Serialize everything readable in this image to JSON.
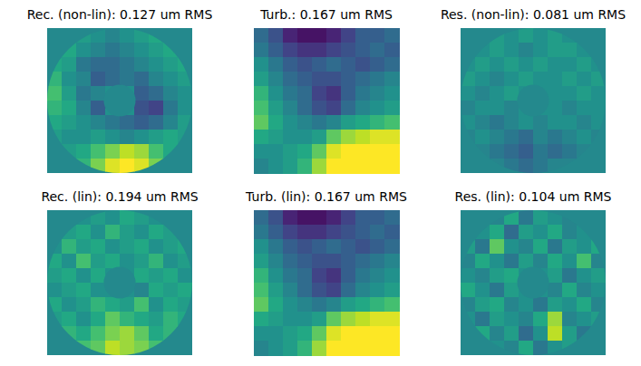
{
  "chart_data": [
    {
      "type": "heatmap",
      "title": "Rec. (non-lin): 0.127 um RMS",
      "zlim": [
        0,
        1
      ],
      "cells": [
        [
          null,
          null,
          0.55,
          0.5,
          0.45,
          0.5,
          0.55,
          0.6,
          null,
          null
        ],
        [
          null,
          0.6,
          0.5,
          0.45,
          0.4,
          0.45,
          0.5,
          0.55,
          0.6,
          null
        ],
        [
          0.6,
          0.55,
          0.4,
          0.35,
          0.35,
          0.4,
          0.45,
          0.5,
          0.55,
          0.6
        ],
        [
          0.65,
          0.5,
          0.45,
          0.3,
          0.35,
          0.4,
          0.35,
          0.45,
          0.5,
          0.55
        ],
        [
          0.7,
          0.55,
          0.4,
          0.45,
          0.5,
          0.5,
          0.3,
          0.35,
          0.45,
          0.5
        ],
        [
          0.65,
          0.6,
          0.45,
          0.3,
          0.5,
          0.5,
          0.25,
          0.2,
          0.4,
          0.5
        ],
        [
          0.6,
          0.55,
          0.5,
          0.45,
          0.4,
          0.35,
          0.3,
          0.35,
          0.45,
          0.55
        ],
        [
          0.55,
          0.5,
          0.5,
          0.55,
          0.5,
          0.45,
          0.5,
          0.55,
          0.6,
          0.55
        ],
        [
          null,
          0.55,
          0.6,
          0.7,
          0.8,
          0.9,
          0.85,
          0.7,
          0.6,
          null
        ],
        [
          null,
          null,
          0.65,
          0.8,
          0.95,
          1,
          0.95,
          0.8,
          null,
          null
        ]
      ]
    },
    {
      "type": "heatmap",
      "title": "Turb.: 0.167 um RMS",
      "zlim": [
        0,
        1
      ],
      "cells": [
        [
          0.35,
          0.25,
          0.1,
          0.05,
          0.05,
          0.1,
          0.2,
          0.3,
          0.3,
          0.35
        ],
        [
          0.4,
          0.3,
          0.2,
          0.15,
          0.15,
          0.2,
          0.25,
          0.3,
          0.35,
          0.3
        ],
        [
          0.5,
          0.4,
          0.3,
          0.25,
          0.3,
          0.35,
          0.3,
          0.25,
          0.3,
          0.35
        ],
        [
          0.55,
          0.45,
          0.35,
          0.3,
          0.25,
          0.25,
          0.3,
          0.35,
          0.4,
          0.45
        ],
        [
          0.65,
          0.5,
          0.4,
          0.35,
          0.2,
          0.15,
          0.3,
          0.4,
          0.45,
          0.5
        ],
        [
          0.7,
          0.55,
          0.45,
          0.35,
          0.25,
          0.2,
          0.35,
          0.45,
          0.5,
          0.55
        ],
        [
          0.75,
          0.6,
          0.5,
          0.45,
          0.4,
          0.45,
          0.55,
          0.6,
          0.65,
          0.7
        ],
        [
          0.6,
          0.55,
          0.5,
          0.5,
          0.55,
          0.75,
          0.85,
          0.9,
          0.95,
          0.95
        ],
        [
          0.5,
          0.5,
          0.55,
          0.6,
          0.75,
          0.95,
          1,
          1,
          1,
          1
        ],
        [
          0.45,
          0.5,
          0.55,
          0.65,
          0.85,
          1,
          1,
          1,
          1,
          1
        ]
      ]
    },
    {
      "type": "heatmap",
      "title": "Res. (non-lin): 0.081 um RMS",
      "zlim": [
        0,
        1
      ],
      "cells": [
        [
          null,
          null,
          0.55,
          0.5,
          0.55,
          0.5,
          0.55,
          0.5,
          null,
          null
        ],
        [
          null,
          0.5,
          0.55,
          0.5,
          0.45,
          0.5,
          0.55,
          0.55,
          0.5,
          null
        ],
        [
          0.5,
          0.55,
          0.5,
          0.55,
          0.5,
          0.55,
          0.5,
          0.5,
          0.55,
          0.5
        ],
        [
          0.55,
          0.5,
          0.45,
          0.5,
          0.55,
          0.5,
          0.5,
          0.55,
          0.5,
          0.55
        ],
        [
          0.5,
          0.45,
          0.5,
          0.55,
          0.5,
          0.5,
          0.5,
          0.5,
          0.55,
          0.5
        ],
        [
          0.45,
          0.5,
          0.5,
          0.45,
          0.5,
          0.5,
          0.5,
          0.45,
          0.5,
          0.5
        ],
        [
          0.5,
          0.45,
          0.4,
          0.45,
          0.5,
          0.45,
          0.5,
          0.5,
          0.45,
          0.5
        ],
        [
          0.45,
          0.5,
          0.45,
          0.4,
          0.35,
          0.45,
          0.4,
          0.45,
          0.5,
          0.45
        ],
        [
          null,
          0.45,
          0.4,
          0.35,
          0.3,
          0.4,
          0.35,
          0.4,
          0.45,
          null
        ],
        [
          null,
          null,
          0.45,
          0.4,
          0.35,
          0.4,
          0.45,
          0.45,
          null,
          null
        ]
      ]
    },
    {
      "type": "heatmap",
      "title": "Rec. (lin): 0.194 um RMS",
      "zlim": [
        0,
        1
      ],
      "cells": [
        [
          null,
          null,
          0.5,
          0.55,
          0.5,
          0.6,
          0.55,
          0.5,
          null,
          null
        ],
        [
          null,
          0.55,
          0.6,
          0.5,
          0.65,
          0.55,
          0.5,
          0.6,
          0.55,
          null
        ],
        [
          0.5,
          0.65,
          0.55,
          0.6,
          0.5,
          0.55,
          0.6,
          0.5,
          0.55,
          0.6
        ],
        [
          0.6,
          0.5,
          0.7,
          0.55,
          0.6,
          0.5,
          0.55,
          0.65,
          0.5,
          0.55
        ],
        [
          0.55,
          0.6,
          0.5,
          0.6,
          0.5,
          0.5,
          0.6,
          0.55,
          0.6,
          0.5
        ],
        [
          0.5,
          0.55,
          0.6,
          0.5,
          0.5,
          0.5,
          0.45,
          0.6,
          0.55,
          0.6
        ],
        [
          0.6,
          0.5,
          0.55,
          0.65,
          0.6,
          0.55,
          0.7,
          0.5,
          0.6,
          0.55
        ],
        [
          0.55,
          0.6,
          0.5,
          0.6,
          0.75,
          0.65,
          0.6,
          0.55,
          0.65,
          0.6
        ],
        [
          null,
          0.65,
          0.6,
          0.7,
          0.8,
          0.85,
          0.75,
          0.6,
          0.65,
          null
        ],
        [
          null,
          null,
          0.7,
          0.75,
          0.9,
          0.85,
          0.8,
          0.7,
          null,
          null
        ]
      ]
    },
    {
      "type": "heatmap",
      "title": "Turb. (lin): 0.167 um RMS",
      "zlim": [
        0,
        1
      ],
      "cells": [
        [
          0.35,
          0.25,
          0.1,
          0.05,
          0.05,
          0.1,
          0.2,
          0.3,
          0.3,
          0.35
        ],
        [
          0.4,
          0.3,
          0.2,
          0.15,
          0.15,
          0.2,
          0.25,
          0.3,
          0.35,
          0.3
        ],
        [
          0.5,
          0.4,
          0.3,
          0.25,
          0.3,
          0.35,
          0.3,
          0.25,
          0.3,
          0.35
        ],
        [
          0.55,
          0.45,
          0.35,
          0.3,
          0.25,
          0.25,
          0.3,
          0.35,
          0.4,
          0.45
        ],
        [
          0.65,
          0.5,
          0.4,
          0.35,
          0.2,
          0.15,
          0.3,
          0.4,
          0.45,
          0.5
        ],
        [
          0.7,
          0.55,
          0.45,
          0.35,
          0.25,
          0.2,
          0.35,
          0.45,
          0.5,
          0.55
        ],
        [
          0.75,
          0.6,
          0.5,
          0.45,
          0.4,
          0.45,
          0.55,
          0.6,
          0.65,
          0.7
        ],
        [
          0.6,
          0.55,
          0.5,
          0.5,
          0.55,
          0.75,
          0.85,
          0.9,
          0.95,
          0.95
        ],
        [
          0.5,
          0.5,
          0.55,
          0.6,
          0.75,
          0.95,
          1,
          1,
          1,
          1
        ],
        [
          0.45,
          0.5,
          0.55,
          0.65,
          0.85,
          1,
          1,
          1,
          1,
          1
        ]
      ]
    },
    {
      "type": "heatmap",
      "title": "Res. (lin): 0.104 um RMS",
      "zlim": [
        0,
        1
      ],
      "cells": [
        [
          null,
          null,
          0.45,
          0.6,
          0.4,
          0.55,
          0.5,
          0.45,
          null,
          null
        ],
        [
          null,
          0.5,
          0.6,
          0.35,
          0.55,
          0.5,
          0.6,
          0.45,
          0.5,
          null
        ],
        [
          0.55,
          0.4,
          0.75,
          0.5,
          0.45,
          0.6,
          0.4,
          0.55,
          0.5,
          0.6
        ],
        [
          0.45,
          0.6,
          0.5,
          0.4,
          0.55,
          0.45,
          0.6,
          0.5,
          0.7,
          0.45
        ],
        [
          0.5,
          0.45,
          0.55,
          0.6,
          0.5,
          0.5,
          0.55,
          0.4,
          0.5,
          0.55
        ],
        [
          0.6,
          0.5,
          0.4,
          0.55,
          0.5,
          0.5,
          0.45,
          0.6,
          0.45,
          0.5
        ],
        [
          0.45,
          0.55,
          0.6,
          0.45,
          0.5,
          0.4,
          0.55,
          0.5,
          0.6,
          0.45
        ],
        [
          0.5,
          0.4,
          0.55,
          0.5,
          0.45,
          0.6,
          0.85,
          0.45,
          0.5,
          0.55
        ],
        [
          null,
          0.6,
          0.45,
          0.55,
          0.35,
          0.5,
          0.9,
          0.55,
          0.4,
          null
        ],
        [
          null,
          null,
          0.5,
          0.45,
          0.6,
          0.4,
          0.5,
          0.55,
          null,
          null
        ]
      ]
    }
  ]
}
